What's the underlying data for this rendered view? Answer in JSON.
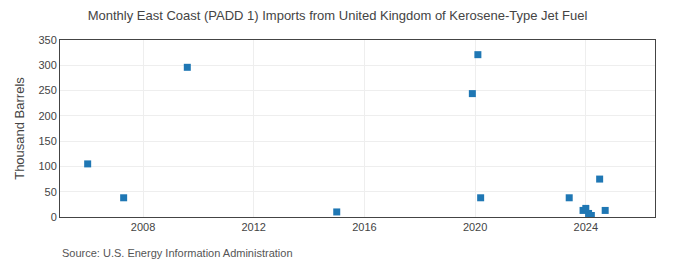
{
  "chart_data": {
    "type": "scatter",
    "title": "Monthly East Coast (PADD 1) Imports from United Kingdom of Kerosene-Type Jet Fuel",
    "ylabel": "Thousand Barrels",
    "annotations": [
      "Source: U.S. Energy Information Administration"
    ],
    "marker": "square",
    "x": [
      2006.0,
      2007.3,
      2009.6,
      2015.0,
      2019.9,
      2020.1,
      2020.2,
      2023.4,
      2023.9,
      2024.0,
      2024.1,
      2024.2,
      2024.5,
      2024.7
    ],
    "values": [
      105,
      38,
      296,
      10,
      244,
      321,
      38,
      38,
      13,
      17,
      7,
      3,
      75,
      13
    ],
    "xlim": [
      2005.0,
      2026.5
    ],
    "xticks": [
      2008,
      2012,
      2016,
      2020,
      2024
    ],
    "ylim": [
      0,
      350
    ],
    "yticks": [
      0,
      50,
      100,
      150,
      200,
      250,
      300,
      350
    ],
    "grid": true
  }
}
